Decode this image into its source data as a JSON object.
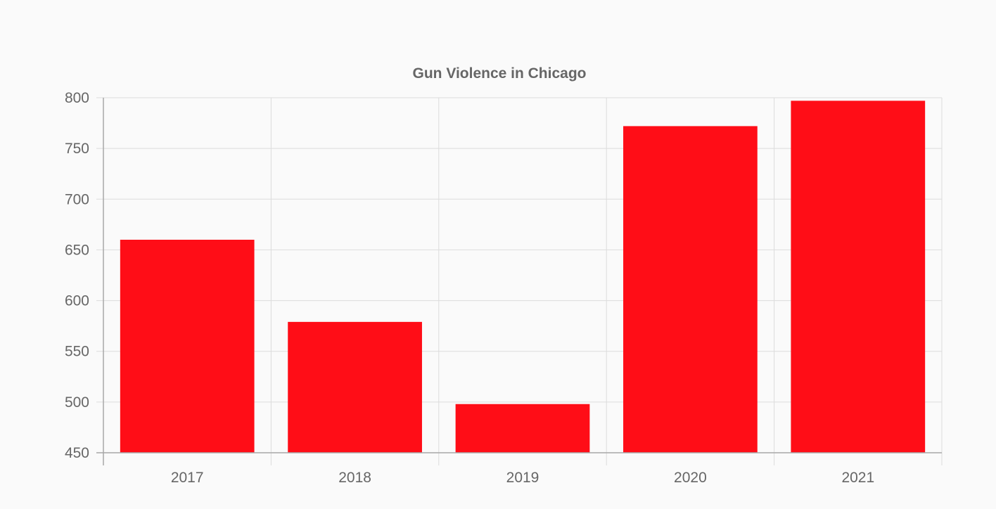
{
  "chart_data": {
    "type": "bar",
    "title": "Gun Violence in Chicago",
    "categories": [
      "2017",
      "2018",
      "2019",
      "2020",
      "2021"
    ],
    "values": [
      660,
      579,
      498,
      772,
      797
    ],
    "ylim": [
      450,
      800
    ],
    "yticks": [
      450,
      500,
      550,
      600,
      650,
      700,
      750,
      800
    ],
    "xlabel": "",
    "ylabel": "",
    "grid": true,
    "legend": "none",
    "colors": {
      "bar": "#ff0d17",
      "grid": "#dcdcdc",
      "axis": "#a8a8a8",
      "text": "#666666",
      "background": "#fafafa"
    }
  }
}
